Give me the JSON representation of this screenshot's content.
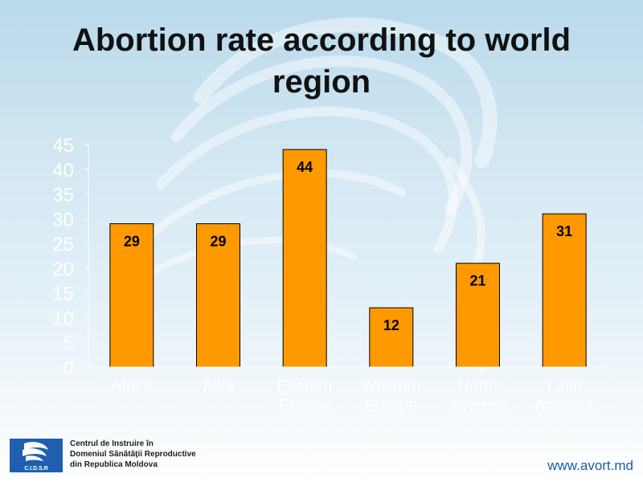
{
  "slide": {
    "title": "Abortion rate according to world region"
  },
  "chart_data": {
    "type": "bar",
    "categories": [
      "Africa",
      "Asia",
      "Eastern Europe",
      "Western Europe",
      "North America",
      "Latin America"
    ],
    "values": [
      29,
      29,
      44,
      12,
      21,
      31
    ],
    "data_labels": [
      "29",
      "29",
      "44",
      "12",
      "21",
      "31"
    ],
    "yticks": [
      "0",
      "5",
      "10",
      "15",
      "20",
      "25",
      "30",
      "35",
      "40",
      "45"
    ],
    "ylim": [
      0,
      45
    ],
    "bar_color": "#ff9900",
    "grid": false,
    "legend": "none"
  },
  "footer": {
    "logo_text": "C.I.D.S.R",
    "org_lines": [
      "Centrul de Instruire în",
      "Domeniul Sănătăţii Reproductive",
      "din Republica Moldova"
    ],
    "url": "www.avort.md"
  }
}
